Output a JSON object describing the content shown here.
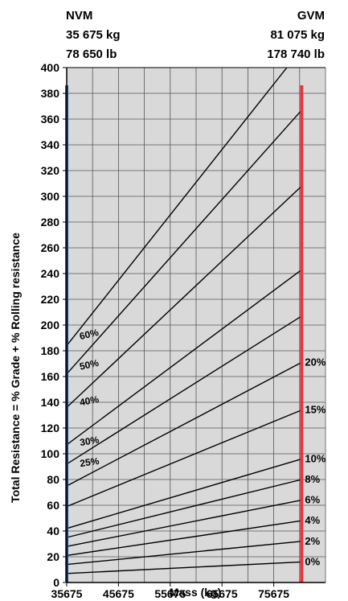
{
  "header": {
    "left": {
      "title": "NVM",
      "kg": "35 675 kg",
      "lb": "78 650 lb"
    },
    "right": {
      "title": "GVM",
      "kg": "81 075 kg",
      "lb": "178 740 lb"
    }
  },
  "chart_data": {
    "type": "line",
    "xlabel": "Mass (kg)",
    "ylabel": "Total Resistance = % Grade + % Rolling resistance",
    "xlim": [
      35675,
      85675
    ],
    "ylim": [
      0,
      400
    ],
    "x_ticks": [
      35675,
      45675,
      55675,
      65675,
      75675
    ],
    "y_ticks": [
      0,
      20,
      40,
      60,
      80,
      100,
      120,
      140,
      160,
      180,
      200,
      220,
      240,
      260,
      280,
      300,
      320,
      340,
      360,
      380,
      400
    ],
    "grid": true,
    "markers": [
      {
        "name": "NVM",
        "x": 35675,
        "color": "#1f4fa8"
      },
      {
        "name": "GVM",
        "x": 81075,
        "color": "#e8343c"
      }
    ],
    "background": "#d9d9d9",
    "series": [
      {
        "name": "0%",
        "label_side": "right",
        "x": [
          35675,
          81075
        ],
        "y": [
          7,
          16
        ]
      },
      {
        "name": "2%",
        "label_side": "right",
        "x": [
          35675,
          81075
        ],
        "y": [
          14,
          32
        ]
      },
      {
        "name": "4%",
        "label_side": "right",
        "x": [
          35675,
          81075
        ],
        "y": [
          21,
          48
        ]
      },
      {
        "name": "6%",
        "label_side": "right",
        "x": [
          35675,
          81075
        ],
        "y": [
          28,
          64
        ]
      },
      {
        "name": "8%",
        "label_side": "right",
        "x": [
          35675,
          81075
        ],
        "y": [
          35,
          80
        ]
      },
      {
        "name": "10%",
        "label_side": "right",
        "x": [
          35675,
          81075
        ],
        "y": [
          42,
          96
        ]
      },
      {
        "name": "15%",
        "label_side": "right",
        "x": [
          35675,
          81075
        ],
        "y": [
          59,
          134
        ]
      },
      {
        "name": "20%",
        "label_side": "right",
        "x": [
          35675,
          81075
        ],
        "y": [
          75,
          171
        ]
      },
      {
        "name": "25%",
        "label_side": "left",
        "x": [
          35675,
          81075
        ],
        "y": [
          92,
          207
        ]
      },
      {
        "name": "30%",
        "label_side": "left",
        "x": [
          35675,
          81075
        ],
        "y": [
          107,
          243
        ]
      },
      {
        "name": "40%",
        "label_side": "left",
        "x": [
          35675,
          81075
        ],
        "y": [
          136,
          308
        ]
      },
      {
        "name": "50%",
        "label_side": "left",
        "x": [
          35675,
          81075
        ],
        "y": [
          162,
          367
        ]
      },
      {
        "name": "60%",
        "label_side": "left",
        "x": [
          35675,
          78200
        ],
        "y": [
          184,
          400
        ]
      }
    ]
  }
}
